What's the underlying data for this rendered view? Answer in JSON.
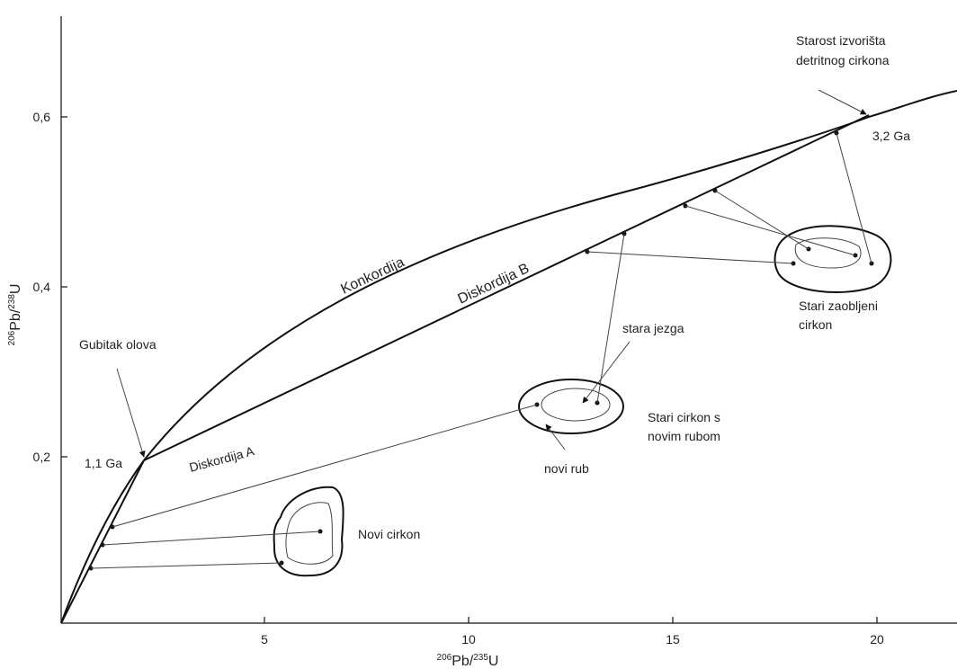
{
  "axes": {
    "x_label": {
      "mass": "206",
      "element": "Pb/",
      "mass2": "235",
      "element2": "U"
    },
    "y_label": {
      "mass": "206",
      "element": "Pb/",
      "mass2": "238",
      "element2": "U"
    },
    "x_ticks": [
      "5",
      "10",
      "15",
      "20"
    ],
    "y_ticks": [
      "0,2",
      "0,4",
      "0,6"
    ]
  },
  "labels": {
    "source_age": [
      "Starost izvorišta",
      "detritnog cirkona"
    ],
    "age_old": "3,2 Ga",
    "concordia": "Konkordija",
    "discordia_b": "Diskordija B",
    "discordia_a": "Diskordija A",
    "lead_loss": "Gubitak olova",
    "age_young": "1,1 Ga",
    "rounded_zircon": [
      "Stari zaobljeni",
      "cirkon"
    ],
    "old_core": "stara jezga",
    "rim_zircon": [
      "Stari cirkon s",
      "novim rubom"
    ],
    "new_rim": "novi rub",
    "new_zircon": "Novi cirkon"
  }
}
